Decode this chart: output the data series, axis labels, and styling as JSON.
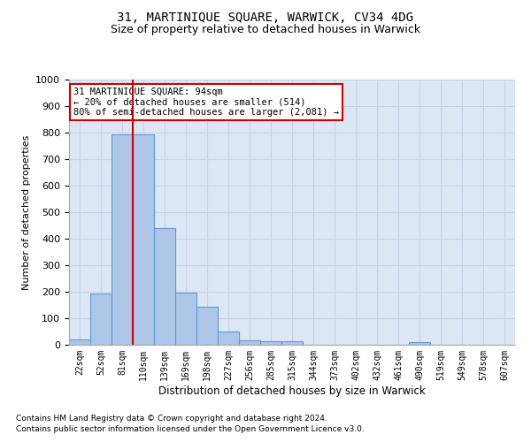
{
  "title": "31, MARTINIQUE SQUARE, WARWICK, CV34 4DG",
  "subtitle": "Size of property relative to detached houses in Warwick",
  "xlabel": "Distribution of detached houses by size in Warwick",
  "ylabel": "Number of detached properties",
  "categories": [
    "22sqm",
    "52sqm",
    "81sqm",
    "110sqm",
    "139sqm",
    "169sqm",
    "198sqm",
    "227sqm",
    "256sqm",
    "285sqm",
    "315sqm",
    "344sqm",
    "373sqm",
    "402sqm",
    "432sqm",
    "461sqm",
    "490sqm",
    "519sqm",
    "549sqm",
    "578sqm",
    "607sqm"
  ],
  "values": [
    20,
    192,
    793,
    793,
    440,
    197,
    142,
    50,
    17,
    14,
    14,
    0,
    0,
    0,
    0,
    0,
    10,
    0,
    0,
    0,
    0
  ],
  "bar_color": "#aec6e8",
  "bar_edge_color": "#5b9bd5",
  "vline_color": "#cc0000",
  "annotation_text": "31 MARTINIQUE SQUARE: 94sqm\n← 20% of detached houses are smaller (514)\n80% of semi-detached houses are larger (2,081) →",
  "annotation_box_color": "#ffffff",
  "annotation_box_edge": "#cc0000",
  "footnote1": "Contains HM Land Registry data © Crown copyright and database right 2024.",
  "footnote2": "Contains public sector information licensed under the Open Government Licence v3.0.",
  "ylim": [
    0,
    1000
  ],
  "yticks": [
    0,
    100,
    200,
    300,
    400,
    500,
    600,
    700,
    800,
    900,
    1000
  ],
  "grid_color": "#c8d4e8",
  "bg_color": "#dce6f5",
  "title_fontsize": 10,
  "subtitle_fontsize": 9
}
